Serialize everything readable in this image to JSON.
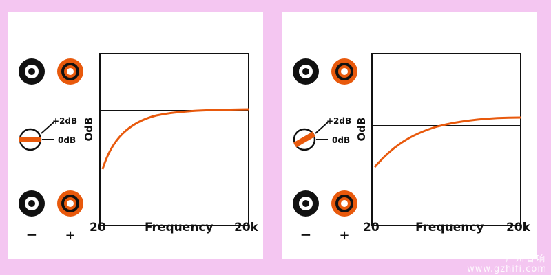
{
  "panels": [
    {
      "id": "left",
      "minus_label": "−",
      "plus_label": "+",
      "switch_labels": {
        "high": "+2dB",
        "zero": "0dB"
      },
      "switch_setting": "0dB",
      "ylabel": "OdB",
      "xlabel": "Frequency",
      "x_start": "20",
      "x_end": "20k"
    },
    {
      "id": "right",
      "minus_label": "−",
      "plus_label": "+",
      "switch_labels": {
        "high": "+2dB",
        "zero": "0dB"
      },
      "switch_setting": "+2dB",
      "ylabel": "OdB",
      "xlabel": "Frequency",
      "x_start": "20",
      "x_end": "20k"
    }
  ],
  "colors": {
    "background": "#f4c6f1",
    "panel": "#ffffff",
    "curve": "#e8590c",
    "line": "#000000",
    "terminal_positive": "#e8590c"
  },
  "watermark": {
    "text": "www.gzhifi.com",
    "cn": "广州音响"
  }
}
